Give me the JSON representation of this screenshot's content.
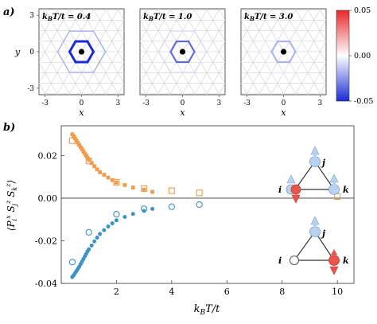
{
  "panel_a": {
    "label": "a)",
    "panels": [
      {
        "title": "k",
        "title_sub": "B",
        "title_rest": "T/t = 0.4",
        "kT": 0.4,
        "ring1_level": -0.05,
        "ring2_level": -0.02
      },
      {
        "title": "k",
        "title_sub": "B",
        "title_rest": "T/t = 1.0",
        "kT": 1.0,
        "ring1_level": -0.035,
        "ring2_level": -0.008
      },
      {
        "title": "k",
        "title_sub": "B",
        "title_rest": "T/t = 3.0",
        "kT": 3.0,
        "ring1_level": -0.018,
        "ring2_level": -0.003
      }
    ],
    "xlabel": "x",
    "ylabel": "y",
    "x_ticks": [
      "-3",
      "0",
      "3"
    ],
    "y_ticks": [
      "3",
      "0",
      "-3"
    ],
    "colorbar": {
      "ticks": [
        "0.05",
        "0.00",
        "-0.05"
      ],
      "range": [
        -0.05,
        0.05
      ],
      "colors": {
        "high": "#e8282b",
        "mid": "#ffffff",
        "low": "#1a2bd6"
      }
    }
  },
  "chart_data": {
    "type": "scatter",
    "label": "b)",
    "xlabel": "k_BT/t",
    "ylabel": "⟨P^x_i S^z_j S^z_k⟩",
    "xlim": [
      0.0,
      10.6
    ],
    "ylim": [
      -0.04,
      0.034
    ],
    "x_ticks": [
      "2",
      "4",
      "6",
      "8",
      "10"
    ],
    "x_tick_values": [
      2,
      4,
      6,
      8,
      10
    ],
    "y_ticks": [
      "0.02",
      "0.00",
      "-0.02",
      "-0.04"
    ],
    "y_tick_values": [
      0.02,
      0.0,
      -0.02,
      -0.04
    ],
    "series": [
      {
        "color": "#f29b4b",
        "marker": "square-filled",
        "x": [
          0.4,
          0.45,
          0.5,
          0.55,
          0.6,
          0.65,
          0.7,
          0.75,
          0.8,
          0.85,
          0.9,
          0.95,
          1.0,
          1.1,
          1.2,
          1.3,
          1.4,
          1.55,
          1.7,
          1.85,
          2.0,
          2.3,
          2.6,
          3.0,
          3.3
        ],
        "y": [
          0.03,
          0.029,
          0.028,
          0.027,
          0.026,
          0.025,
          0.024,
          0.023,
          0.022,
          0.021,
          0.02,
          0.019,
          0.018,
          0.0165,
          0.015,
          0.0135,
          0.0122,
          0.011,
          0.0097,
          0.0085,
          0.0074,
          0.0062,
          0.005,
          0.004,
          0.003
        ]
      },
      {
        "color": "#f29b4b",
        "marker": "square-open",
        "x": [
          0.4,
          1.0,
          2.0,
          3.0,
          4.0,
          5.0,
          10.0
        ],
        "y": [
          0.027,
          0.0175,
          0.0075,
          0.0045,
          0.0035,
          0.0025,
          0.0008
        ]
      },
      {
        "color": "#3d93c4",
        "marker": "circle-filled",
        "x": [
          0.4,
          0.45,
          0.5,
          0.55,
          0.6,
          0.65,
          0.7,
          0.75,
          0.8,
          0.85,
          0.9,
          0.95,
          1.0,
          1.1,
          1.2,
          1.3,
          1.4,
          1.55,
          1.7,
          1.85,
          2.0,
          2.3,
          2.6,
          3.0,
          3.3
        ],
        "y": [
          -0.037,
          -0.0362,
          -0.0352,
          -0.0342,
          -0.0332,
          -0.0322,
          -0.031,
          -0.0298,
          -0.0286,
          -0.0274,
          -0.0262,
          -0.025,
          -0.024,
          -0.0222,
          -0.0203,
          -0.0185,
          -0.0168,
          -0.015,
          -0.0133,
          -0.0118,
          -0.0104,
          -0.0088,
          -0.0074,
          -0.006,
          -0.005
        ]
      },
      {
        "color": "#3d93c4",
        "marker": "circle-open",
        "x": [
          0.4,
          1.0,
          2.0,
          3.0,
          4.0,
          5.0
        ],
        "y": [
          -0.03,
          -0.016,
          -0.0075,
          -0.005,
          -0.004,
          -0.003
        ]
      }
    ],
    "zero_line": 0.0
  },
  "diagrams": {
    "upper": {
      "i": "i",
      "j": "j",
      "k": "k"
    },
    "lower": {
      "i": "i",
      "j": "j",
      "k": "k"
    },
    "colors": {
      "blue_spin": "#b8d3ee",
      "red_spin": "#e8554a"
    }
  }
}
